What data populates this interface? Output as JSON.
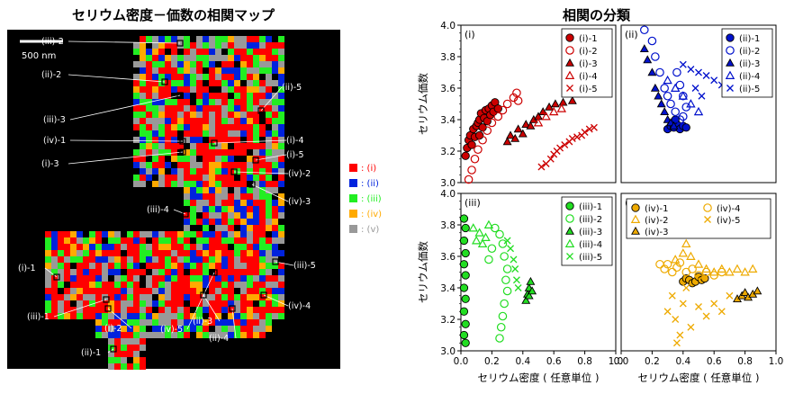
{
  "left_title": "セリウム密度－価数の相関マップ",
  "right_title": "相関の分類",
  "scale_bar_label": "500 nm",
  "class_colors": {
    "i": "#ff0000",
    "ii": "#0022dd",
    "iii": "#22ee22",
    "iv": "#ffaa00",
    "v": "#999999"
  },
  "legend": [
    {
      "key": "i",
      "label": ": (i)"
    },
    {
      "key": "ii",
      "label": ": (ii)"
    },
    {
      "key": "iii",
      "label": ": (iii)"
    },
    {
      "key": "iv",
      "label": ": (iv)"
    },
    {
      "key": "v",
      "label": ": (v)"
    }
  ],
  "map_labels": [
    "(iii)-2",
    "(ii)-2",
    "(ii)-5",
    "(iii)-3",
    "(iv)-1",
    "(i)-4",
    "(i)-5",
    "(i)-3",
    "(iv)-2",
    "(iv)-3",
    "(iii)-4",
    "(iii)-5",
    "(i)-1",
    "(iii)-1",
    "(i)-2",
    "(iv)-5",
    "(ii)-3",
    "(ii)-4",
    "(iv)-4",
    "(ii)-1"
  ],
  "chart_data": [
    {
      "type": "scatter",
      "panel": "(i)",
      "xlim": [
        0,
        1.0
      ],
      "ylim": [
        3.0,
        4.0
      ],
      "ylabel": "セリウム価数",
      "xlabel": "",
      "series": [
        {
          "name": "(i)-1",
          "marker": "circle-filled",
          "points": [
            [
              0.03,
              3.17
            ],
            [
              0.04,
              3.22
            ],
            [
              0.05,
              3.27
            ],
            [
              0.06,
              3.3
            ],
            [
              0.07,
              3.24
            ],
            [
              0.08,
              3.34
            ],
            [
              0.09,
              3.29
            ],
            [
              0.1,
              3.36
            ],
            [
              0.11,
              3.38
            ],
            [
              0.12,
              3.3
            ],
            [
              0.12,
              3.4
            ],
            [
              0.13,
              3.44
            ],
            [
              0.14,
              3.35
            ],
            [
              0.15,
              3.41
            ],
            [
              0.16,
              3.46
            ],
            [
              0.17,
              3.39
            ],
            [
              0.18,
              3.47
            ],
            [
              0.19,
              3.43
            ],
            [
              0.2,
              3.49
            ],
            [
              0.21,
              3.45
            ],
            [
              0.22,
              3.51
            ],
            [
              0.24,
              3.47
            ]
          ]
        },
        {
          "name": "(i)-2",
          "marker": "circle-open",
          "points": [
            [
              0.05,
              3.02
            ],
            [
              0.07,
              3.08
            ],
            [
              0.09,
              3.15
            ],
            [
              0.11,
              3.21
            ],
            [
              0.14,
              3.27
            ],
            [
              0.17,
              3.33
            ],
            [
              0.2,
              3.38
            ],
            [
              0.24,
              3.42
            ],
            [
              0.27,
              3.46
            ],
            [
              0.3,
              3.5
            ],
            [
              0.34,
              3.54
            ],
            [
              0.36,
              3.57
            ],
            [
              0.37,
              3.52
            ]
          ]
        },
        {
          "name": "(i)-3",
          "marker": "triangle-filled",
          "points": [
            [
              0.3,
              3.26
            ],
            [
              0.32,
              3.3
            ],
            [
              0.35,
              3.28
            ],
            [
              0.37,
              3.34
            ],
            [
              0.4,
              3.31
            ],
            [
              0.42,
              3.37
            ],
            [
              0.45,
              3.36
            ],
            [
              0.47,
              3.4
            ],
            [
              0.5,
              3.42
            ],
            [
              0.53,
              3.45
            ],
            [
              0.57,
              3.48
            ],
            [
              0.61,
              3.5
            ],
            [
              0.66,
              3.51
            ],
            [
              0.72,
              3.52
            ]
          ]
        },
        {
          "name": "(i)-4",
          "marker": "triangle-open",
          "points": [
            [
              0.5,
              3.38
            ],
            [
              0.55,
              3.42
            ],
            [
              0.6,
              3.45
            ],
            [
              0.65,
              3.47
            ]
          ]
        },
        {
          "name": "(i)-5",
          "marker": "cross",
          "points": [
            [
              0.52,
              3.1
            ],
            [
              0.55,
              3.12
            ],
            [
              0.58,
              3.15
            ],
            [
              0.6,
              3.18
            ],
            [
              0.62,
              3.2
            ],
            [
              0.64,
              3.22
            ],
            [
              0.67,
              3.24
            ],
            [
              0.7,
              3.26
            ],
            [
              0.72,
              3.28
            ],
            [
              0.75,
              3.29
            ],
            [
              0.78,
              3.3
            ],
            [
              0.8,
              3.32
            ],
            [
              0.83,
              3.34
            ],
            [
              0.86,
              3.35
            ]
          ]
        }
      ]
    },
    {
      "type": "scatter",
      "panel": "(ii)",
      "xlim": [
        0,
        1.0
      ],
      "ylim": [
        3.0,
        4.0
      ],
      "xlabel": "",
      "ylabel": "",
      "series": [
        {
          "name": "(ii)-1",
          "marker": "circle-filled",
          "points": [
            [
              0.3,
              3.34
            ],
            [
              0.32,
              3.36
            ],
            [
              0.34,
              3.35
            ],
            [
              0.36,
              3.37
            ],
            [
              0.38,
              3.34
            ],
            [
              0.4,
              3.36
            ],
            [
              0.35,
              3.4
            ],
            [
              0.42,
              3.35
            ]
          ]
        },
        {
          "name": "(ii)-2",
          "marker": "circle-open",
          "points": [
            [
              0.15,
              3.97
            ],
            [
              0.2,
              3.9
            ],
            [
              0.22,
              3.8
            ],
            [
              0.25,
              3.7
            ],
            [
              0.28,
              3.6
            ],
            [
              0.3,
              3.55
            ],
            [
              0.32,
              3.5
            ],
            [
              0.35,
              3.45
            ],
            [
              0.38,
              3.4
            ],
            [
              0.4,
              3.42
            ],
            [
              0.42,
              3.48
            ],
            [
              0.4,
              3.55
            ],
            [
              0.38,
              3.62
            ],
            [
              0.36,
              3.7
            ]
          ]
        },
        {
          "name": "(ii)-3",
          "marker": "triangle-filled",
          "points": [
            [
              0.15,
              3.85
            ],
            [
              0.17,
              3.78
            ],
            [
              0.2,
              3.7
            ],
            [
              0.22,
              3.6
            ],
            [
              0.24,
              3.55
            ],
            [
              0.26,
              3.5
            ],
            [
              0.28,
              3.45
            ],
            [
              0.3,
              3.4
            ],
            [
              0.32,
              3.38
            ],
            [
              0.34,
              3.36
            ]
          ]
        },
        {
          "name": "(ii)-4",
          "marker": "triangle-open",
          "points": [
            [
              0.3,
              3.65
            ],
            [
              0.35,
              3.6
            ],
            [
              0.4,
              3.55
            ],
            [
              0.45,
              3.5
            ],
            [
              0.5,
              3.45
            ]
          ]
        },
        {
          "name": "(ii)-5",
          "marker": "cross",
          "points": [
            [
              0.4,
              3.75
            ],
            [
              0.45,
              3.72
            ],
            [
              0.5,
              3.7
            ],
            [
              0.55,
              3.68
            ],
            [
              0.6,
              3.65
            ],
            [
              0.65,
              3.62
            ],
            [
              0.48,
              3.6
            ],
            [
              0.52,
              3.55
            ]
          ]
        }
      ]
    },
    {
      "type": "scatter",
      "panel": "(iii)",
      "xlim": [
        0,
        1.0
      ],
      "ylim": [
        3.0,
        4.0
      ],
      "ylabel": "セリウム価数",
      "xlabel": "セリウム密度 ( 任意単位 )",
      "series": [
        {
          "name": "(iii)-1",
          "marker": "circle-filled",
          "points": [
            [
              0.02,
              3.84
            ],
            [
              0.03,
              3.78
            ],
            [
              0.02,
              3.7
            ],
            [
              0.03,
              3.62
            ],
            [
              0.02,
              3.55
            ],
            [
              0.03,
              3.48
            ],
            [
              0.02,
              3.4
            ],
            [
              0.03,
              3.33
            ],
            [
              0.02,
              3.25
            ],
            [
              0.03,
              3.17
            ],
            [
              0.02,
              3.1
            ],
            [
              0.03,
              3.05
            ]
          ]
        },
        {
          "name": "(iii)-2",
          "marker": "circle-open",
          "points": [
            [
              0.25,
              3.08
            ],
            [
              0.26,
              3.15
            ],
            [
              0.27,
              3.22
            ],
            [
              0.28,
              3.3
            ],
            [
              0.3,
              3.38
            ],
            [
              0.29,
              3.45
            ],
            [
              0.3,
              3.52
            ],
            [
              0.28,
              3.6
            ],
            [
              0.27,
              3.68
            ],
            [
              0.25,
              3.74
            ],
            [
              0.22,
              3.78
            ],
            [
              0.2,
              3.65
            ],
            [
              0.18,
              3.58
            ]
          ]
        },
        {
          "name": "(iii)-3",
          "marker": "triangle-filled",
          "points": [
            [
              0.42,
              3.32
            ],
            [
              0.43,
              3.36
            ],
            [
              0.44,
              3.4
            ],
            [
              0.45,
              3.44
            ],
            [
              0.44,
              3.35
            ],
            [
              0.46,
              3.38
            ]
          ]
        },
        {
          "name": "(iii)-4",
          "marker": "triangle-open",
          "points": [
            [
              0.08,
              3.78
            ],
            [
              0.1,
              3.7
            ],
            [
              0.12,
              3.75
            ],
            [
              0.14,
              3.68
            ],
            [
              0.16,
              3.72
            ],
            [
              0.18,
              3.8
            ]
          ]
        },
        {
          "name": "(iii)-5",
          "marker": "cross",
          "points": [
            [
              0.3,
              3.7
            ],
            [
              0.32,
              3.65
            ],
            [
              0.34,
              3.58
            ],
            [
              0.35,
              3.52
            ],
            [
              0.36,
              3.45
            ],
            [
              0.37,
              3.4
            ]
          ]
        }
      ]
    },
    {
      "type": "scatter",
      "panel": "(iv)",
      "xlim": [
        0,
        1.0
      ],
      "ylim": [
        3.0,
        4.0
      ],
      "xlabel": "セリウム密度 ( 任意単位 )",
      "ylabel": "",
      "series": [
        {
          "name": "(iv)-1",
          "marker": "circle-filled",
          "points": [
            [
              0.4,
              3.44
            ],
            [
              0.42,
              3.46
            ],
            [
              0.44,
              3.45
            ],
            [
              0.46,
              3.43
            ],
            [
              0.48,
              3.44
            ],
            [
              0.5,
              3.47
            ],
            [
              0.52,
              3.45
            ],
            [
              0.54,
              3.46
            ]
          ]
        },
        {
          "name": "(iv)-2",
          "marker": "triangle-open",
          "points": [
            [
              0.35,
              3.58
            ],
            [
              0.4,
              3.62
            ],
            [
              0.42,
              3.68
            ],
            [
              0.45,
              3.6
            ],
            [
              0.5,
              3.55
            ],
            [
              0.55,
              3.52
            ],
            [
              0.6,
              3.5
            ],
            [
              0.65,
              3.52
            ],
            [
              0.7,
              3.5
            ],
            [
              0.75,
              3.52
            ],
            [
              0.8,
              3.5
            ],
            [
              0.85,
              3.52
            ]
          ]
        },
        {
          "name": "(iv)-3",
          "marker": "triangle-filled",
          "points": [
            [
              0.75,
              3.33
            ],
            [
              0.78,
              3.35
            ],
            [
              0.8,
              3.37
            ],
            [
              0.82,
              3.34
            ],
            [
              0.85,
              3.36
            ],
            [
              0.88,
              3.38
            ]
          ]
        },
        {
          "name": "(iv)-4",
          "marker": "circle-open",
          "points": [
            [
              0.25,
              3.55
            ],
            [
              0.28,
              3.52
            ],
            [
              0.3,
              3.55
            ],
            [
              0.33,
              3.5
            ],
            [
              0.36,
              3.53
            ],
            [
              0.38,
              3.56
            ],
            [
              0.42,
              3.5
            ],
            [
              0.46,
              3.52
            ],
            [
              0.5,
              3.48
            ],
            [
              0.55,
              3.5
            ],
            [
              0.6,
              3.48
            ],
            [
              0.65,
              3.5
            ]
          ]
        },
        {
          "name": "(iv)-5",
          "marker": "cross",
          "points": [
            [
              0.3,
              3.25
            ],
            [
              0.35,
              3.2
            ],
            [
              0.4,
              3.3
            ],
            [
              0.45,
              3.15
            ],
            [
              0.5,
              3.28
            ],
            [
              0.38,
              3.1
            ],
            [
              0.55,
              3.22
            ],
            [
              0.6,
              3.3
            ],
            [
              0.33,
              3.35
            ],
            [
              0.42,
              3.4
            ],
            [
              0.65,
              3.25
            ],
            [
              0.7,
              3.35
            ],
            [
              0.36,
              3.05
            ]
          ]
        }
      ]
    }
  ]
}
